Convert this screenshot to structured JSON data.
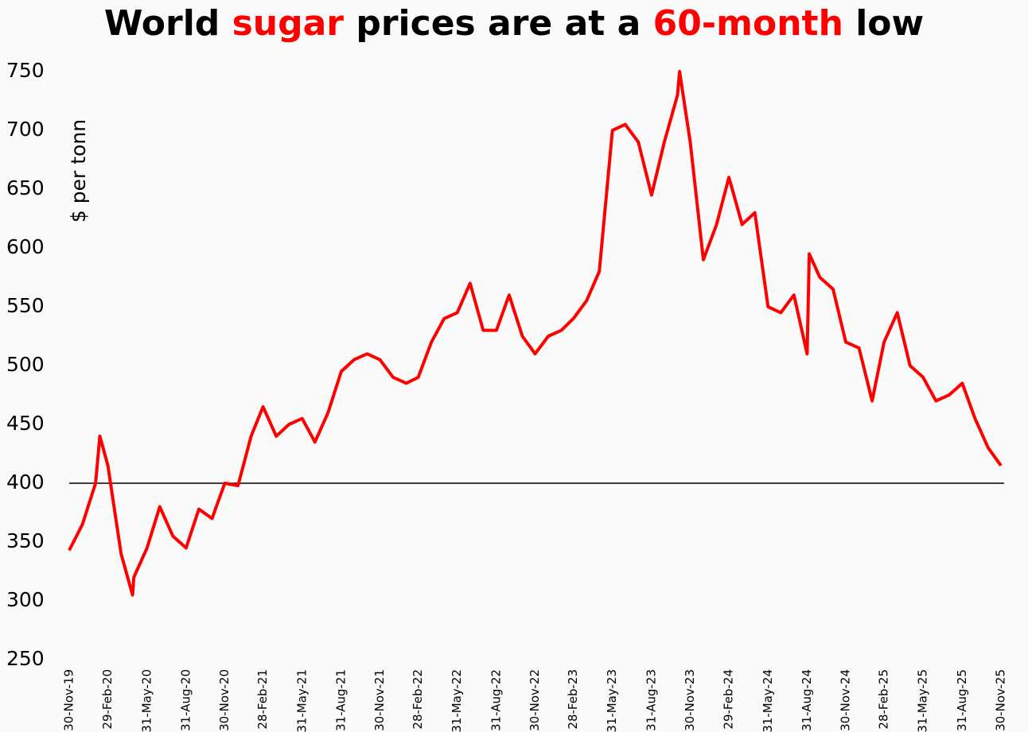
{
  "chart_data": {
    "type": "line",
    "title": [
      {
        "text": "World ",
        "color": "#000000"
      },
      {
        "text": "sugar",
        "color": "#ff0000"
      },
      {
        "text": " prices are at a ",
        "color": "#000000"
      },
      {
        "text": "60-month",
        "color": "#ff0000"
      },
      {
        "text": " low",
        "color": "#000000"
      }
    ],
    "y_label": "$ per tonn",
    "x": [
      "30-Nov-19",
      "31-Dec-19",
      "31-Jan-20",
      "10-Feb-20",
      "29-Feb-20",
      "31-Mar-20",
      "27-Apr-20",
      "30-Apr-20",
      "31-May-20",
      "30-Jun-20",
      "31-Jul-20",
      "31-Aug-20",
      "30-Sep-20",
      "31-Oct-20",
      "30-Nov-20",
      "31-Dec-20",
      "31-Jan-21",
      "28-Feb-21",
      "31-Mar-21",
      "30-Apr-21",
      "31-May-21",
      "30-Jun-21",
      "31-Jul-21",
      "31-Aug-21",
      "30-Sep-21",
      "31-Oct-21",
      "30-Nov-21",
      "31-Dec-21",
      "31-Jan-22",
      "28-Feb-22",
      "31-Mar-22",
      "30-Apr-22",
      "31-May-22",
      "30-Jun-22",
      "31-Jul-22",
      "31-Aug-22",
      "30-Sep-22",
      "31-Oct-22",
      "30-Nov-22",
      "31-Dec-22",
      "31-Jan-23",
      "28-Feb-23",
      "31-Mar-23",
      "30-Apr-23",
      "31-May-23",
      "30-Jun-23",
      "31-Jul-23",
      "31-Aug-23",
      "30-Sep-23",
      "31-Oct-23",
      "05-Nov-23",
      "30-Nov-23",
      "31-Dec-23",
      "31-Jan-24",
      "29-Feb-24",
      "31-Mar-24",
      "30-Apr-24",
      "31-May-24",
      "30-Jun-24",
      "31-Jul-24",
      "31-Aug-24",
      "05-Sep-24",
      "30-Sep-24",
      "31-Oct-24",
      "30-Nov-24",
      "31-Dec-24",
      "31-Jan-25",
      "28-Feb-25",
      "31-Mar-25",
      "30-Apr-25",
      "31-May-25",
      "30-Jun-25",
      "31-Jul-25",
      "31-Aug-25",
      "30-Sep-25",
      "31-Oct-25",
      "30-Nov-25"
    ],
    "series": [
      {
        "name": "World sugar price",
        "color": "#ff0000",
        "values": [
          343,
          365,
          400,
          440,
          415,
          340,
          305,
          320,
          345,
          380,
          355,
          345,
          378,
          370,
          400,
          398,
          440,
          465,
          440,
          450,
          455,
          435,
          460,
          495,
          505,
          510,
          505,
          490,
          485,
          490,
          520,
          540,
          545,
          570,
          530,
          530,
          560,
          525,
          510,
          525,
          530,
          540,
          555,
          580,
          700,
          705,
          690,
          645,
          690,
          730,
          750,
          690,
          590,
          620,
          660,
          620,
          630,
          550,
          545,
          560,
          510,
          595,
          575,
          565,
          520,
          515,
          470,
          520,
          545,
          500,
          490,
          470,
          475,
          485,
          455,
          430,
          415
        ]
      }
    ],
    "xlim": [
      "30-Nov-19",
      "30-Nov-25"
    ],
    "xticks": [
      "30-Nov-19",
      "29-Feb-20",
      "31-May-20",
      "31-Aug-20",
      "30-Nov-20",
      "28-Feb-21",
      "31-May-21",
      "31-Aug-21",
      "30-Nov-21",
      "28-Feb-22",
      "31-May-22",
      "31-Aug-22",
      "30-Nov-22",
      "28-Feb-23",
      "31-May-23",
      "31-Aug-23",
      "30-Nov-23",
      "29-Feb-24",
      "31-May-24",
      "31-Aug-24",
      "30-Nov-24",
      "28-Feb-25",
      "31-May-25",
      "31-Aug-25",
      "30-Nov-25"
    ],
    "ylim": [
      250,
      750
    ],
    "yticks": [
      250,
      300,
      350,
      400,
      450,
      500,
      550,
      600,
      650,
      700,
      750
    ],
    "reference_line": 400,
    "grid": false
  }
}
